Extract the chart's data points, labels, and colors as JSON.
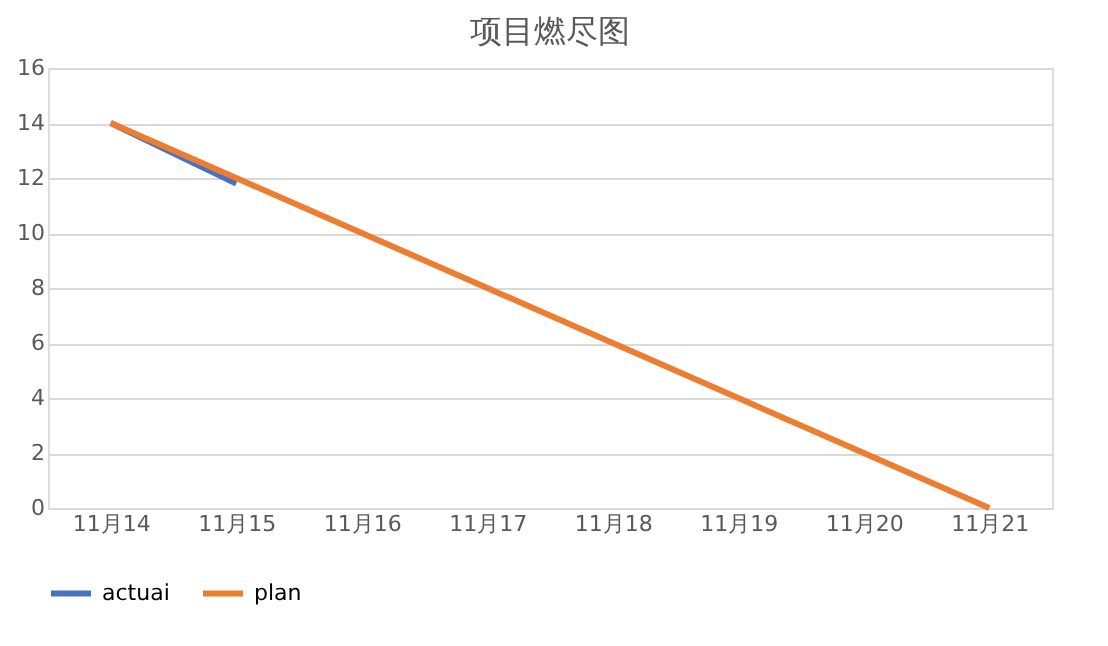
{
  "chart_data": {
    "type": "line",
    "title": "项目燃尽图",
    "categories": [
      "11月14",
      "11月15",
      "11月16",
      "11月17",
      "11月18",
      "11月19",
      "11月20",
      "11月21"
    ],
    "series": [
      {
        "name": "actuai",
        "color": "#4472c4",
        "values": [
          14,
          11.8,
          null,
          null,
          null,
          null,
          null,
          null
        ]
      },
      {
        "name": "plan",
        "color": "#ed7d31",
        "values": [
          14,
          12,
          10,
          8,
          6,
          4,
          2,
          0
        ]
      }
    ],
    "ylim": [
      0,
      16
    ],
    "yticks": [
      0,
      2,
      4,
      6,
      8,
      10,
      12,
      14,
      16
    ],
    "grid": "y",
    "legend": "bottom",
    "marker": "none",
    "line_style": "solid"
  }
}
